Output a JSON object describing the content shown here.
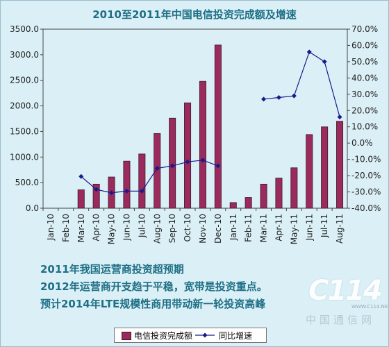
{
  "chart_data": {
    "type": "bar",
    "title": "2010至2011年中国电信投资完成额及增速",
    "categories": [
      "Jan-10",
      "Feb-10",
      "Mar-10",
      "Apr-10",
      "May-10",
      "Jun-10",
      "Jul-10",
      "Aug-10",
      "Sep-10",
      "Oct-10",
      "Nov-10",
      "Dec-10",
      "Jan-11",
      "Feb-11",
      "Mar-11",
      "Apr-11",
      "May-11",
      "Jun-11",
      "Jul-11",
      "Aug-11"
    ],
    "series": [
      {
        "name": "电信投资完成额",
        "type": "bar",
        "axis": "left",
        "color": "#9b2a5d",
        "values": [
          null,
          null,
          360,
          470,
          610,
          920,
          1060,
          1460,
          1760,
          2060,
          2480,
          3190,
          110,
          210,
          470,
          590,
          790,
          1440,
          1590,
          1700
        ]
      },
      {
        "name": "同比增速",
        "type": "line",
        "axis": "right",
        "color": "#1a1a8c",
        "values": [
          null,
          null,
          -20.5,
          -28.5,
          -30.5,
          -29.5,
          -29.5,
          -15.5,
          -14,
          -11.5,
          -10.5,
          -14,
          null,
          null,
          27,
          28,
          29,
          56,
          50,
          16
        ]
      }
    ],
    "left_axis": {
      "min": 0,
      "max": 3500,
      "step": 500,
      "ticks": [
        "0.0",
        "500.0",
        "1000.0",
        "1500.0",
        "2000.0",
        "2500.0",
        "3000.0",
        "3500.0"
      ]
    },
    "right_axis": {
      "min": -40,
      "max": 70,
      "step": 10,
      "ticks": [
        "-40.0%",
        "-30.0%",
        "-20.0%",
        "-10.0%",
        "0.0%",
        "10.0%",
        "20.0%",
        "30.0%",
        "40.0%",
        "50.0%",
        "60.0%",
        "70.0%"
      ]
    },
    "grid": false,
    "legend_position": "bottom"
  },
  "annotation": {
    "lines": [
      "2011年我国运营商投资超预期",
      "2012年运营商开支趋于平稳，宽带是投资重点。",
      "预计2014年LTE规模性商用带动新一轮投资高峰"
    ]
  },
  "watermark": {
    "logo": "C114",
    "url": "WWW.C114.NET",
    "name": "中国通信网"
  },
  "colors": {
    "background": "#dbf0f6",
    "title": "#1f6f86",
    "bar": "#9b2a5d",
    "line": "#1a1a8c"
  }
}
